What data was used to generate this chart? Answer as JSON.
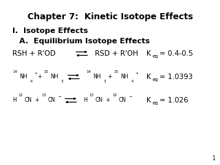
{
  "title": "Chapter 7:  Kinetic Isotope Effects",
  "section_I": "I.  Isotope Effects",
  "section_A": "A.  Equilibrium Isotope Effects",
  "background_color": "#ffffff",
  "text_color": "#000000",
  "page_number": "1"
}
